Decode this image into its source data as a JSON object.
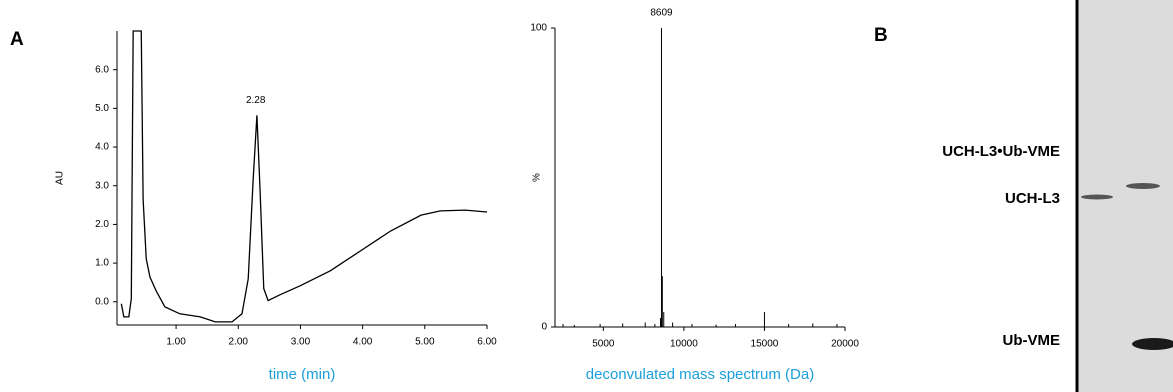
{
  "panel_labels": [
    "A",
    "B"
  ],
  "chart_data": [
    {
      "type": "line",
      "x_label": "time (min)",
      "y_label": "AU",
      "color": "#000000",
      "x": [
        0.12,
        0.16,
        0.24,
        0.28,
        0.31,
        0.44,
        0.47,
        0.52,
        0.58,
        0.68,
        0.82,
        1.06,
        1.39,
        1.63,
        1.9,
        2.06,
        2.16,
        2.24,
        2.3,
        2.35,
        2.41,
        2.48,
        2.67,
        2.99,
        3.48,
        3.96,
        4.45,
        4.94,
        5.25,
        5.65,
        6.0
      ],
      "values": [
        -0.05,
        -0.39,
        -0.39,
        0.08,
        7.0,
        7.0,
        2.65,
        1.11,
        0.64,
        0.28,
        -0.13,
        -0.31,
        -0.39,
        -0.52,
        -0.52,
        -0.31,
        0.59,
        3.17,
        4.82,
        2.91,
        0.34,
        0.03,
        0.18,
        0.41,
        0.8,
        1.31,
        1.83,
        2.24,
        2.35,
        2.37,
        2.32
      ],
      "annotation": {
        "label": "2.28",
        "x": 2.28
      },
      "xlim": [
        0.05,
        6.0
      ],
      "ylim": [
        -0.6,
        7.0
      ],
      "xticks": [
        {
          "value": 1,
          "label": "1.00"
        },
        {
          "value": 2,
          "label": "2.00"
        },
        {
          "value": 3,
          "label": "3.00"
        },
        {
          "value": 4,
          "label": "4.00"
        },
        {
          "value": 5,
          "label": "5.00"
        },
        {
          "value": 6,
          "label": "6.00"
        }
      ],
      "yticks": [
        {
          "value": 0,
          "label": "0.0"
        },
        {
          "value": 1,
          "label": "1.0"
        },
        {
          "value": 2,
          "label": "2.0"
        },
        {
          "value": 3,
          "label": "3.0"
        },
        {
          "value": 4,
          "label": "4.0"
        },
        {
          "value": 5,
          "label": "5.0"
        },
        {
          "value": 6,
          "label": "6.0"
        }
      ]
    },
    {
      "type": "stem",
      "x_label": "deconvulated mass spectrum (Da)",
      "y_label": "%",
      "color": "#000000",
      "x": [
        2500,
        3200,
        4800,
        6200,
        7600,
        8200,
        8550,
        8609,
        8660,
        8750,
        9300,
        10500,
        12000,
        13200,
        15000,
        16500,
        18000,
        19500
      ],
      "values": [
        1,
        0.7,
        1,
        1.2,
        1.5,
        1,
        3,
        100,
        17,
        5,
        1.5,
        1,
        0.8,
        1,
        5,
        1,
        1.2,
        1
      ],
      "annotation": {
        "label": "8609",
        "x": 8609
      },
      "xlim": [
        2000,
        20000
      ],
      "ylim": [
        0,
        100
      ],
      "xticks": [
        5000,
        10000,
        15000,
        20000
      ],
      "yticks": [
        0,
        100
      ]
    }
  ],
  "gel": {
    "band_labels": [
      "UCH-L3•Ub-VME",
      "UCH-L3",
      "Ub-VME"
    ]
  }
}
